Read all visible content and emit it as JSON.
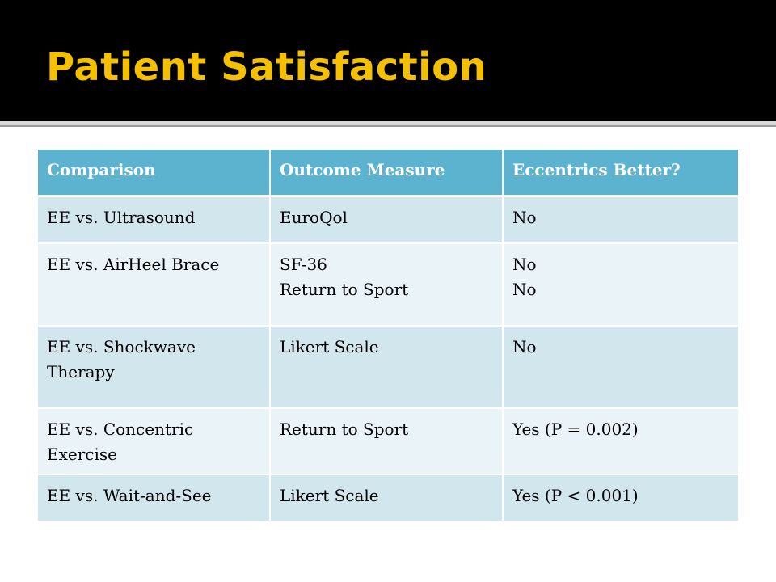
{
  "slide": {
    "title": "Patient Satisfaction",
    "colors": {
      "title_bar": "#000000",
      "title_text": "#f5c000",
      "header_fill": "#5bb3cf",
      "row_dark": "#d2e6ee",
      "row_light": "#eaf3f8"
    }
  },
  "table": {
    "headers": [
      "Comparison",
      "Outcome Measure",
      "Eccentrics Better?"
    ],
    "rows": [
      {
        "comparison": [
          "EE vs. Ultrasound"
        ],
        "outcome": [
          "EuroQol"
        ],
        "better": [
          "No"
        ]
      },
      {
        "comparison": [
          "EE vs. AirHeel Brace"
        ],
        "outcome": [
          "SF-36",
          "Return to Sport"
        ],
        "better": [
          "No",
          "No"
        ]
      },
      {
        "comparison": [
          "EE vs. Shockwave",
          "Therapy"
        ],
        "outcome": [
          "Likert Scale"
        ],
        "better": [
          "No"
        ]
      },
      {
        "comparison": [
          "EE vs. Concentric",
          "Exercise"
        ],
        "outcome": [
          "Return to Sport"
        ],
        "better": [
          "Yes (P = 0.002)"
        ]
      },
      {
        "comparison": [
          "EE vs. Wait-and-See"
        ],
        "outcome": [
          "Likert Scale"
        ],
        "better": [
          "Yes (P < 0.001)"
        ]
      }
    ]
  }
}
